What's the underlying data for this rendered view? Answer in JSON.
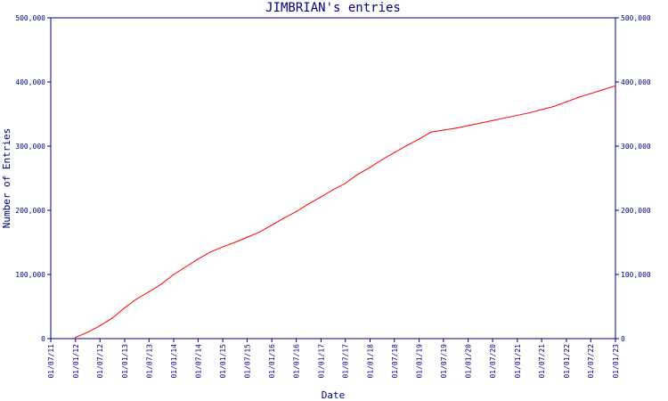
{
  "chart_data": {
    "type": "line",
    "title": "JIMBRIAN's entries",
    "xlabel": "Date",
    "ylabel": "Number of Entries",
    "ylim": [
      0,
      500000
    ],
    "xlim": [
      "2011-07-01",
      "2023-01-01"
    ],
    "y_ticks": [
      0,
      100000,
      200000,
      300000,
      400000,
      500000
    ],
    "y_tick_labels": [
      "0",
      "100,000",
      "200,000",
      "300,000",
      "400,000",
      "500,000"
    ],
    "x_ticks": [
      "2011-07-01",
      "2012-01-01",
      "2012-07-01",
      "2013-01-01",
      "2013-07-01",
      "2014-01-01",
      "2014-07-01",
      "2015-01-01",
      "2015-07-01",
      "2016-01-01",
      "2016-07-01",
      "2017-01-01",
      "2017-07-01",
      "2018-01-01",
      "2018-07-01",
      "2019-01-01",
      "2019-07-01",
      "2020-01-01",
      "2020-07-01",
      "2021-01-01",
      "2021-07-01",
      "2022-01-01",
      "2022-07-01",
      "2023-01-01"
    ],
    "x_tick_labels": [
      "01/07/11",
      "01/01/12",
      "01/07/12",
      "01/01/13",
      "01/07/13",
      "01/01/14",
      "01/07/14",
      "01/01/15",
      "01/07/15",
      "01/01/16",
      "01/07/16",
      "01/01/17",
      "01/07/17",
      "01/01/18",
      "01/07/18",
      "01/01/19",
      "01/07/19",
      "01/01/20",
      "01/07/20",
      "01/01/21",
      "01/07/21",
      "01/01/22",
      "01/07/22",
      "01/01/23"
    ],
    "grid": false,
    "axis_color": "#000080",
    "series": [
      {
        "color": "#ff0000",
        "x": [
          "2012-01-01",
          "2012-04-01",
          "2012-07-01",
          "2012-10-01",
          "2013-01-01",
          "2013-04-01",
          "2013-07-01",
          "2013-10-01",
          "2014-01-01",
          "2014-04-01",
          "2014-07-01",
          "2014-10-01",
          "2015-01-01",
          "2015-04-01",
          "2015-07-01",
          "2015-10-01",
          "2016-01-01",
          "2016-04-01",
          "2016-07-01",
          "2016-10-01",
          "2017-01-01",
          "2017-04-01",
          "2017-07-01",
          "2017-10-01",
          "2018-01-01",
          "2018-04-01",
          "2018-07-01",
          "2018-10-01",
          "2019-01-01",
          "2019-04-01",
          "2019-07-01",
          "2019-10-01",
          "2020-01-01",
          "2020-04-01",
          "2020-07-01",
          "2020-10-01",
          "2021-01-01",
          "2021-04-01",
          "2021-07-01",
          "2021-10-01",
          "2022-01-01",
          "2022-04-01",
          "2022-07-01",
          "2022-10-01",
          "2023-01-01"
        ],
        "y": [
          2000,
          10000,
          20000,
          32000,
          48000,
          62000,
          73000,
          85000,
          100000,
          112000,
          124000,
          135000,
          143000,
          150000,
          158000,
          166000,
          177000,
          188000,
          198000,
          210000,
          221000,
          232000,
          242000,
          256000,
          267000,
          279000,
          290000,
          301000,
          311000,
          322000,
          325000,
          328000,
          332000,
          336000,
          340000,
          344000,
          348000,
          352000,
          357000,
          362000,
          369000,
          376000,
          382000,
          388000,
          394000
        ]
      }
    ]
  }
}
